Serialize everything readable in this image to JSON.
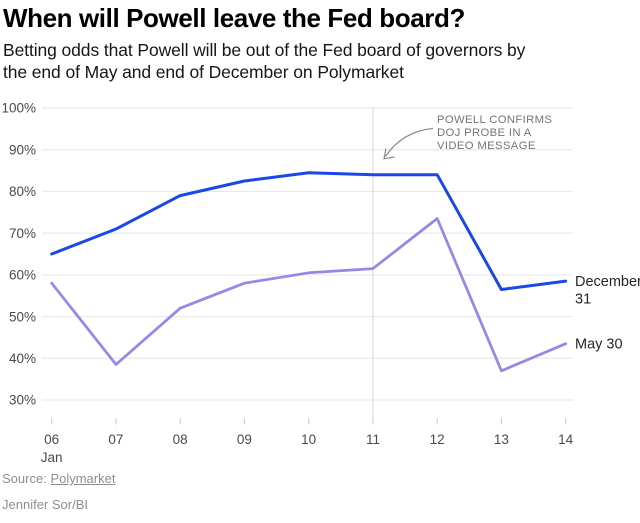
{
  "header": {
    "title": "When will Powell leave the Fed board?",
    "subtitle_lines": {
      "0": "Betting odds that Powell will be out of the Fed board of governors by",
      "1": "the end of May and end of December on Polymarket"
    }
  },
  "chart_data": {
    "type": "line",
    "title": "When will Powell leave the Fed board?",
    "subtitle": "Betting odds that Powell will be out of the Fed board of governors by the end of May and end of December on Polymarket",
    "categories": [
      "06",
      "07",
      "08",
      "09",
      "10",
      "11",
      "12",
      "13",
      "14"
    ],
    "x_first_sublabel": "Jan",
    "xlabel": "",
    "ylabel": "",
    "ylim": [
      30,
      100
    ],
    "ytick_labels": [
      "100%",
      "90%",
      "80%",
      "70%",
      "60%",
      "50%",
      "40%",
      "30%"
    ],
    "grid": "horizontal",
    "legend_position": "right-end-labels",
    "series": [
      {
        "name": "December 31",
        "label_lines": [
          "December",
          "31"
        ],
        "color": "#1b46e8",
        "values": [
          65,
          71,
          79,
          82.5,
          84.5,
          84,
          84,
          56.5,
          58.5
        ]
      },
      {
        "name": "May 30",
        "label_lines": [
          "May 30"
        ],
        "color": "#9887e8",
        "values": [
          58,
          38.5,
          52,
          58,
          60.5,
          61.5,
          73.5,
          37,
          43.5
        ]
      }
    ],
    "event_line": {
      "category": "11",
      "annotation_lines": [
        "POWELL CONFIRMS",
        "DOJ PROBE IN A",
        "VIDEO MESSAGE"
      ]
    }
  },
  "footer": {
    "source_label": "Source:",
    "source_link": "Polymarket",
    "byline": "Jennifer Sor/BI"
  },
  "colors": {
    "december_line": "#1b46e8",
    "may_line": "#9887e8",
    "gridline": "#e6e6e6",
    "event_line": "#d8d8d8",
    "annotation_text": "#757575",
    "axis_text": "#4a4a4a",
    "footer_text": "#8e8e8e"
  }
}
